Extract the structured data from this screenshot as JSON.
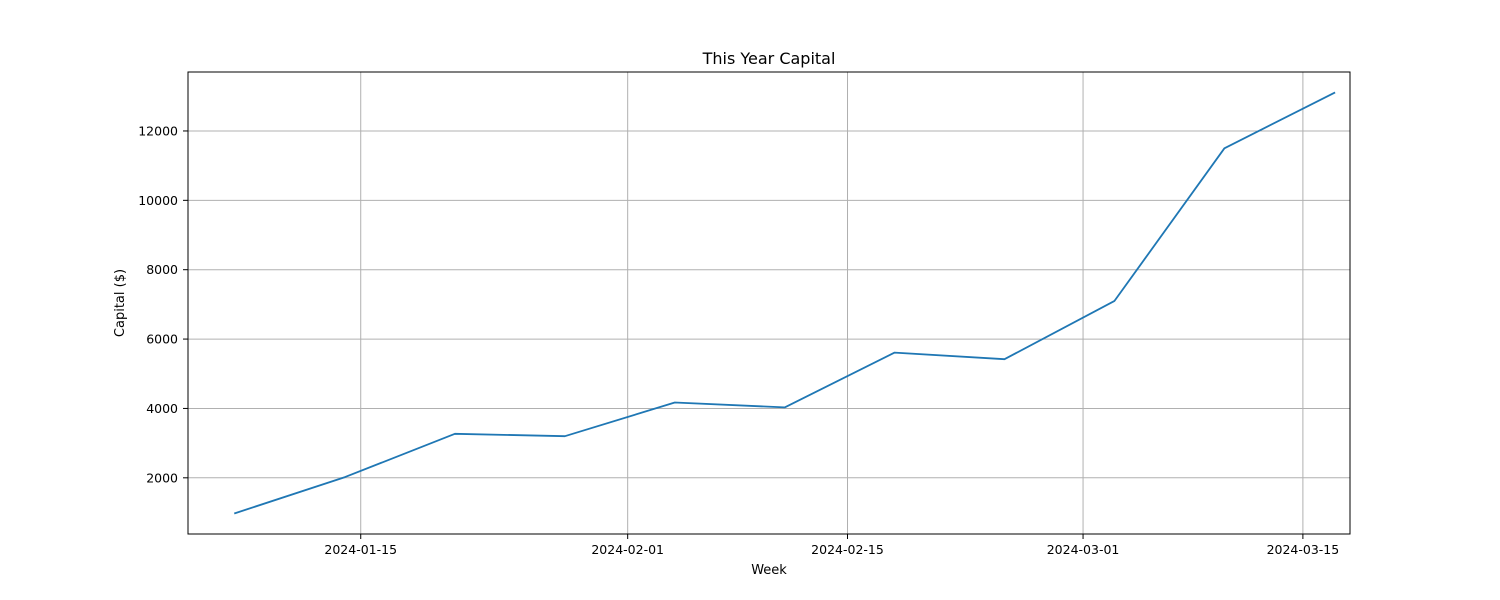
{
  "chart_data": {
    "type": "line",
    "title": "This Year Capital",
    "xlabel": "Week",
    "ylabel": "Capital ($)",
    "x_type": "date",
    "x_ticks": [
      "2024-01-15",
      "2024-02-01",
      "2024-02-15",
      "2024-03-01",
      "2024-03-15"
    ],
    "y_ticks": [
      2000,
      4000,
      6000,
      8000,
      10000,
      12000
    ],
    "xlim": [
      "2024-01-04",
      "2024-03-18"
    ],
    "ylim": [
      380,
      13700
    ],
    "grid": true,
    "series": [
      {
        "color": "#1f77b4",
        "x": [
          "2024-01-07",
          "2024-01-14",
          "2024-01-21",
          "2024-01-28",
          "2024-02-04",
          "2024-02-11",
          "2024-02-18",
          "2024-02-25",
          "2024-03-03",
          "2024-03-10",
          "2024-03-17"
        ],
        "y": [
          980,
          2020,
          3270,
          3200,
          4170,
          4030,
          5610,
          5420,
          7100,
          11500,
          13100
        ]
      }
    ]
  }
}
